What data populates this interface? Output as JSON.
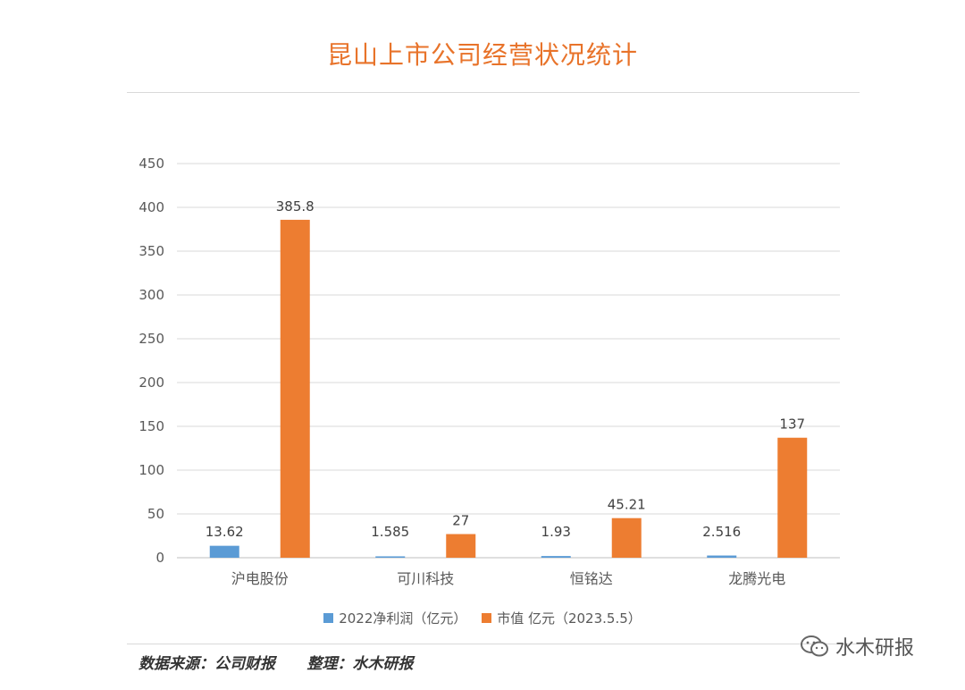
{
  "title": "昆山上市公司经营状况统计",
  "source_text": "数据来源：公司财报      整理：水木研报",
  "watermark": {
    "icon": "wechat-icon",
    "text": "水木研报"
  },
  "chart_data": {
    "type": "bar",
    "title": "昆山上市公司经营状况统计",
    "xlabel": "",
    "ylabel": "",
    "ylim": [
      0,
      450
    ],
    "yticks": [
      0,
      50,
      100,
      150,
      200,
      250,
      300,
      350,
      400,
      450
    ],
    "grid": true,
    "legend_position": "bottom",
    "categories": [
      "沪电股份",
      "可川科技",
      "恒铭达",
      "龙腾光电"
    ],
    "series": [
      {
        "name": "2022净利润（亿元）",
        "color": "#5b9bd5",
        "values": [
          13.62,
          1.585,
          1.93,
          2.516
        ],
        "labels": [
          "13.62",
          "1.585",
          "1.93",
          "2.516"
        ]
      },
      {
        "name": "市值 亿元（2023.5.5）",
        "color": "#ed7d31",
        "values": [
          385.8,
          27,
          45.21,
          137
        ],
        "labels": [
          "385.8",
          "27",
          "45.21",
          "137"
        ]
      }
    ]
  }
}
